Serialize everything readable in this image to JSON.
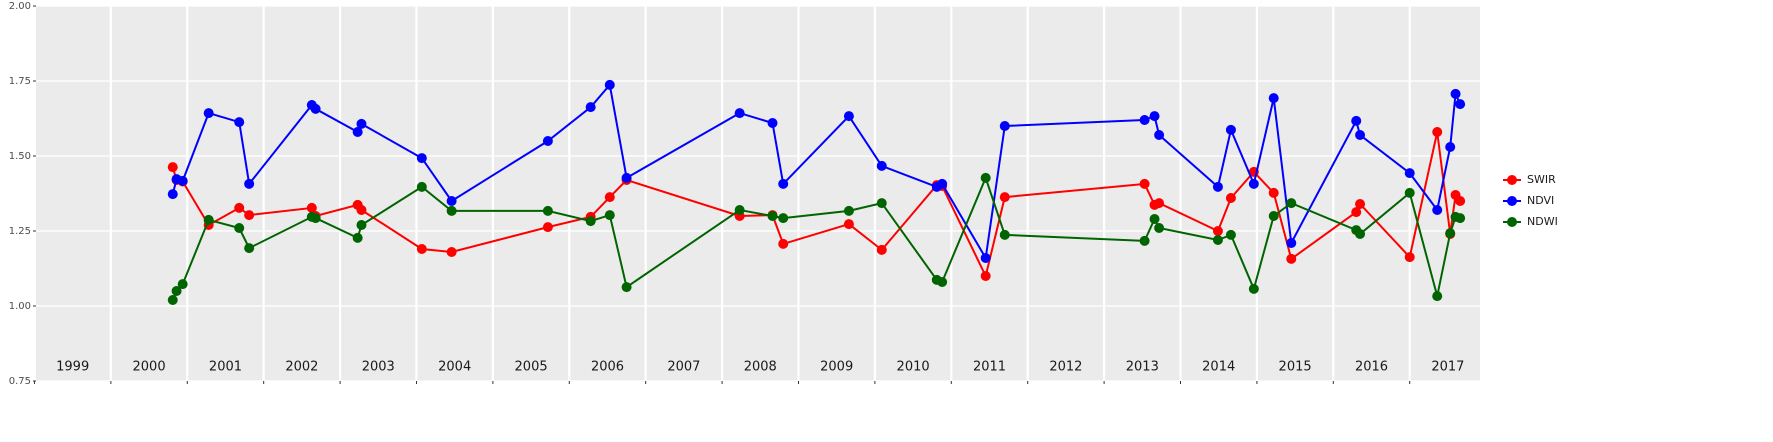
{
  "chart_data": {
    "type": "line",
    "x": [
      2000.81,
      2000.86,
      2000.94,
      2001.28,
      2001.68,
      2001.81,
      2002.63,
      2002.68,
      2003.23,
      2003.28,
      2004.07,
      2004.46,
      2005.72,
      2006.28,
      2006.53,
      2006.75,
      2008.23,
      2008.66,
      2008.8,
      2009.66,
      2010.09,
      2010.81,
      2010.88,
      2011.45,
      2011.7,
      2013.53,
      2013.66,
      2013.72,
      2014.49,
      2014.66,
      2014.96,
      2015.22,
      2015.45,
      2016.3,
      2016.35,
      2017.0,
      2017.36,
      2017.53,
      2017.6,
      2017.66
    ],
    "series": [
      {
        "name": "SWIR",
        "color": "#ff0000",
        "values": [
          1.463,
          1.42,
          1.415,
          1.27,
          1.327,
          1.303,
          1.327,
          1.3,
          1.337,
          1.32,
          1.19,
          1.18,
          1.263,
          1.297,
          1.363,
          1.42,
          1.3,
          1.303,
          1.207,
          1.273,
          1.187,
          1.403,
          1.4,
          1.1,
          1.363,
          1.407,
          1.337,
          1.343,
          1.25,
          1.36,
          1.447,
          1.377,
          1.157,
          1.313,
          1.34,
          1.163,
          1.58,
          1.24,
          1.37,
          1.35
        ]
      },
      {
        "name": "NDVI",
        "color": "#0000ff",
        "values": [
          1.373,
          1.423,
          1.417,
          1.643,
          1.613,
          1.407,
          1.67,
          1.657,
          1.58,
          1.607,
          1.493,
          1.35,
          1.55,
          1.663,
          1.737,
          1.427,
          1.643,
          1.61,
          1.407,
          1.633,
          1.467,
          1.397,
          1.407,
          1.16,
          1.6,
          1.62,
          1.633,
          1.57,
          1.397,
          1.587,
          1.407,
          1.693,
          1.21,
          1.617,
          1.57,
          1.443,
          1.32,
          1.53,
          1.707,
          1.673
        ]
      },
      {
        "name": "NDWI",
        "color": "#006400",
        "values": [
          1.02,
          1.05,
          1.073,
          1.287,
          1.26,
          1.193,
          1.297,
          1.293,
          1.227,
          1.27,
          1.397,
          1.317,
          1.317,
          1.283,
          1.303,
          1.063,
          1.32,
          1.3,
          1.293,
          1.317,
          1.343,
          1.087,
          1.08,
          1.427,
          1.237,
          1.217,
          1.29,
          1.26,
          1.22,
          1.237,
          1.057,
          1.3,
          1.343,
          1.253,
          1.24,
          1.377,
          1.033,
          1.243,
          1.297,
          1.293
        ]
      }
    ],
    "xlim": [
      1999.02,
      2017.92
    ],
    "xticks": [
      1999,
      2000,
      2001,
      2002,
      2003,
      2004,
      2005,
      2006,
      2007,
      2008,
      2009,
      2010,
      2011,
      2012,
      2013,
      2014,
      2015,
      2016,
      2017
    ],
    "ylim": [
      0.75,
      2.0
    ],
    "yticks": [
      {
        "value": 0.75,
        "label": "0.75"
      },
      {
        "value": 1.0,
        "label": "1.00"
      },
      {
        "value": 1.25,
        "label": "1.25"
      },
      {
        "value": 1.5,
        "label": "1.50"
      },
      {
        "value": 1.75,
        "label": "1.75"
      },
      {
        "value": 2.0,
        "label": "2.00"
      }
    ],
    "grid": true,
    "legend": "right"
  }
}
